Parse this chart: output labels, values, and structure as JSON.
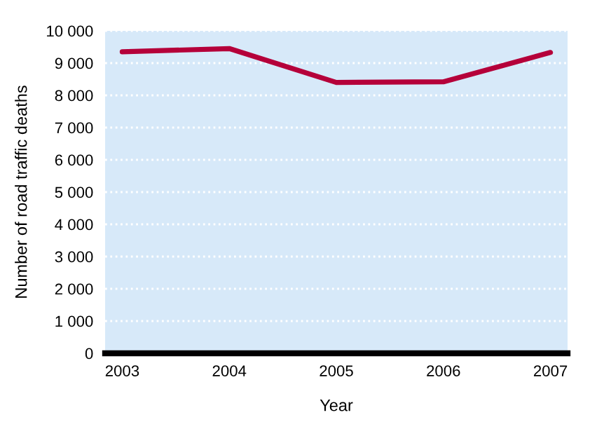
{
  "chart_data": {
    "type": "line",
    "xlabel": "Year",
    "ylabel": "Number of road traffic deaths",
    "categories": [
      "2003",
      "2004",
      "2005",
      "2006",
      "2007"
    ],
    "series": [
      {
        "color": "#b5003a",
        "values": [
          9350,
          9450,
          8400,
          8420,
          9330
        ]
      }
    ],
    "ylim": [
      0,
      10000
    ],
    "yticks": [
      {
        "value": 0,
        "label": "0"
      },
      {
        "value": 1000,
        "label": "1 000"
      },
      {
        "value": 2000,
        "label": "2 000"
      },
      {
        "value": 3000,
        "label": "3 000"
      },
      {
        "value": 4000,
        "label": "4 000"
      },
      {
        "value": 5000,
        "label": "5 000"
      },
      {
        "value": 6000,
        "label": "6 000"
      },
      {
        "value": 7000,
        "label": "7 000"
      },
      {
        "value": 8000,
        "label": "8 000"
      },
      {
        "value": 9000,
        "label": "9 000"
      },
      {
        "value": 10000,
        "label": "10 000"
      }
    ],
    "grid": "y",
    "marker": "none",
    "line_style": "solid"
  }
}
